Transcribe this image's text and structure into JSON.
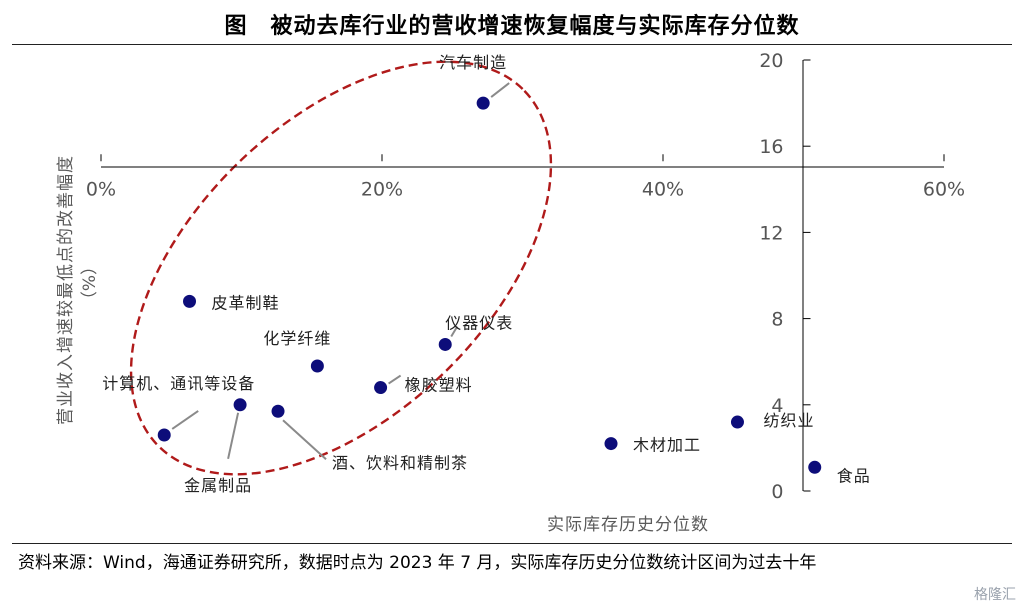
{
  "title": "图　被动去库行业的营收增速恢复幅度与实际库存分位数",
  "source_note": "资料来源：Wind，海通证券研究所，数据时点为 2023 年 7 月，实际库存历史分位数统计区间为过去十年",
  "watermark": "格隆汇",
  "chart_data": {
    "type": "scatter",
    "xlabel": "实际库存历史分位数",
    "ylabel": "营业收入增速较最低点的改善幅度",
    "ylabel_unit": "（%）",
    "xlim": [
      0,
      0.6
    ],
    "ylim": [
      0,
      20
    ],
    "x_ticks": [
      {
        "value": 0.0,
        "label": "0%"
      },
      {
        "value": 0.2,
        "label": "20%"
      },
      {
        "value": 0.4,
        "label": "40%"
      },
      {
        "value": 0.6,
        "label": "60%"
      }
    ],
    "y_ticks": [
      {
        "value": 0,
        "label": "0"
      },
      {
        "value": 4,
        "label": "4"
      },
      {
        "value": 8,
        "label": "8"
      },
      {
        "value": 12,
        "label": "12"
      },
      {
        "value": 16,
        "label": "16"
      },
      {
        "value": 20,
        "label": "20"
      }
    ],
    "x_axis_at_y": 15.3,
    "y_axis_at_x": 0.5,
    "marker_color": "#0d0d7a",
    "ellipse_color": "#b01a1a",
    "points": [
      {
        "name": "汽车制造",
        "x": 0.272,
        "y": 18.0
      },
      {
        "name": "皮革制鞋",
        "x": 0.063,
        "y": 8.8
      },
      {
        "name": "化学纤维",
        "x": 0.154,
        "y": 5.8
      },
      {
        "name": "仪器仪表",
        "x": 0.245,
        "y": 6.8
      },
      {
        "name": "橡胶塑料",
        "x": 0.199,
        "y": 4.8
      },
      {
        "name": "计算机、通讯等设备",
        "x": 0.045,
        "y": 2.6
      },
      {
        "name": "金属制品",
        "x": 0.099,
        "y": 4.0
      },
      {
        "name": "酒、饮料和精制茶",
        "x": 0.126,
        "y": 3.7
      },
      {
        "name": "木材加工",
        "x": 0.363,
        "y": 2.2
      },
      {
        "name": "纺织业",
        "x": 0.453,
        "y": 3.2
      },
      {
        "name": "食品",
        "x": 0.508,
        "y": 1.1
      }
    ]
  }
}
